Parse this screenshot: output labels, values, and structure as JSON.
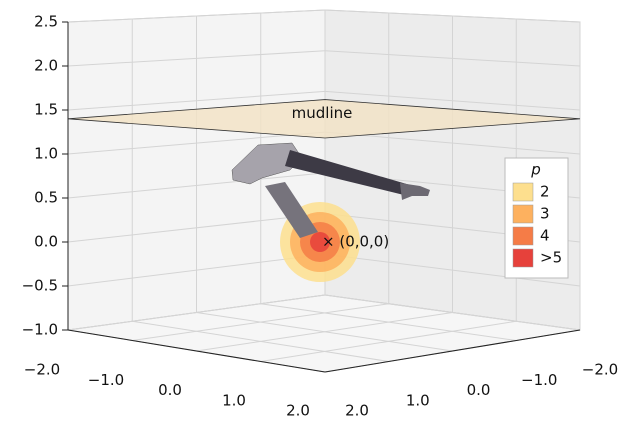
{
  "chart_data": {
    "type": "3d-contour",
    "zlim": [
      -1,
      2.5
    ],
    "zticks": [
      2.5,
      {
        "value": 2,
        "label": "2.0"
      },
      1.5,
      {
        "value": 1,
        "label": "1.0"
      },
      0.5,
      {
        "value": 0,
        "label": "0.0"
      },
      {
        "value": -0.5,
        "label": "−0.5"
      },
      {
        "value": -1,
        "label": "−1.0"
      }
    ],
    "xlim": [
      -2,
      2
    ],
    "xticks": [
      {
        "value": -2,
        "label": "−2.0"
      },
      {
        "value": -1,
        "label": "−1.0"
      },
      {
        "value": 0,
        "label": "0.0"
      },
      {
        "value": 1,
        "label": "1.0"
      },
      {
        "value": 2,
        "label": "2.0"
      }
    ],
    "ylim": [
      -2,
      2
    ],
    "yticks": [
      {
        "value": 2,
        "label": "2.0"
      },
      {
        "value": 1,
        "label": "1.0"
      },
      {
        "value": 0,
        "label": "0.0"
      },
      {
        "value": -1,
        "label": "−1.0"
      },
      {
        "value": -2,
        "label": "−2.0"
      }
    ],
    "grid": true,
    "mudline": {
      "label": "mudline",
      "z": 1.4
    },
    "origin_label": "× (0,0,0)",
    "legend": {
      "title": "p",
      "position": "right",
      "levels": [
        {
          "value": 2,
          "color": "#fddf8e"
        },
        {
          "value": 3,
          "color": "#fdb15f"
        },
        {
          "value": 4,
          "color": "#f57c47"
        },
        {
          "value": 5,
          "label": ">5",
          "color": "#e6413b"
        }
      ]
    }
  }
}
